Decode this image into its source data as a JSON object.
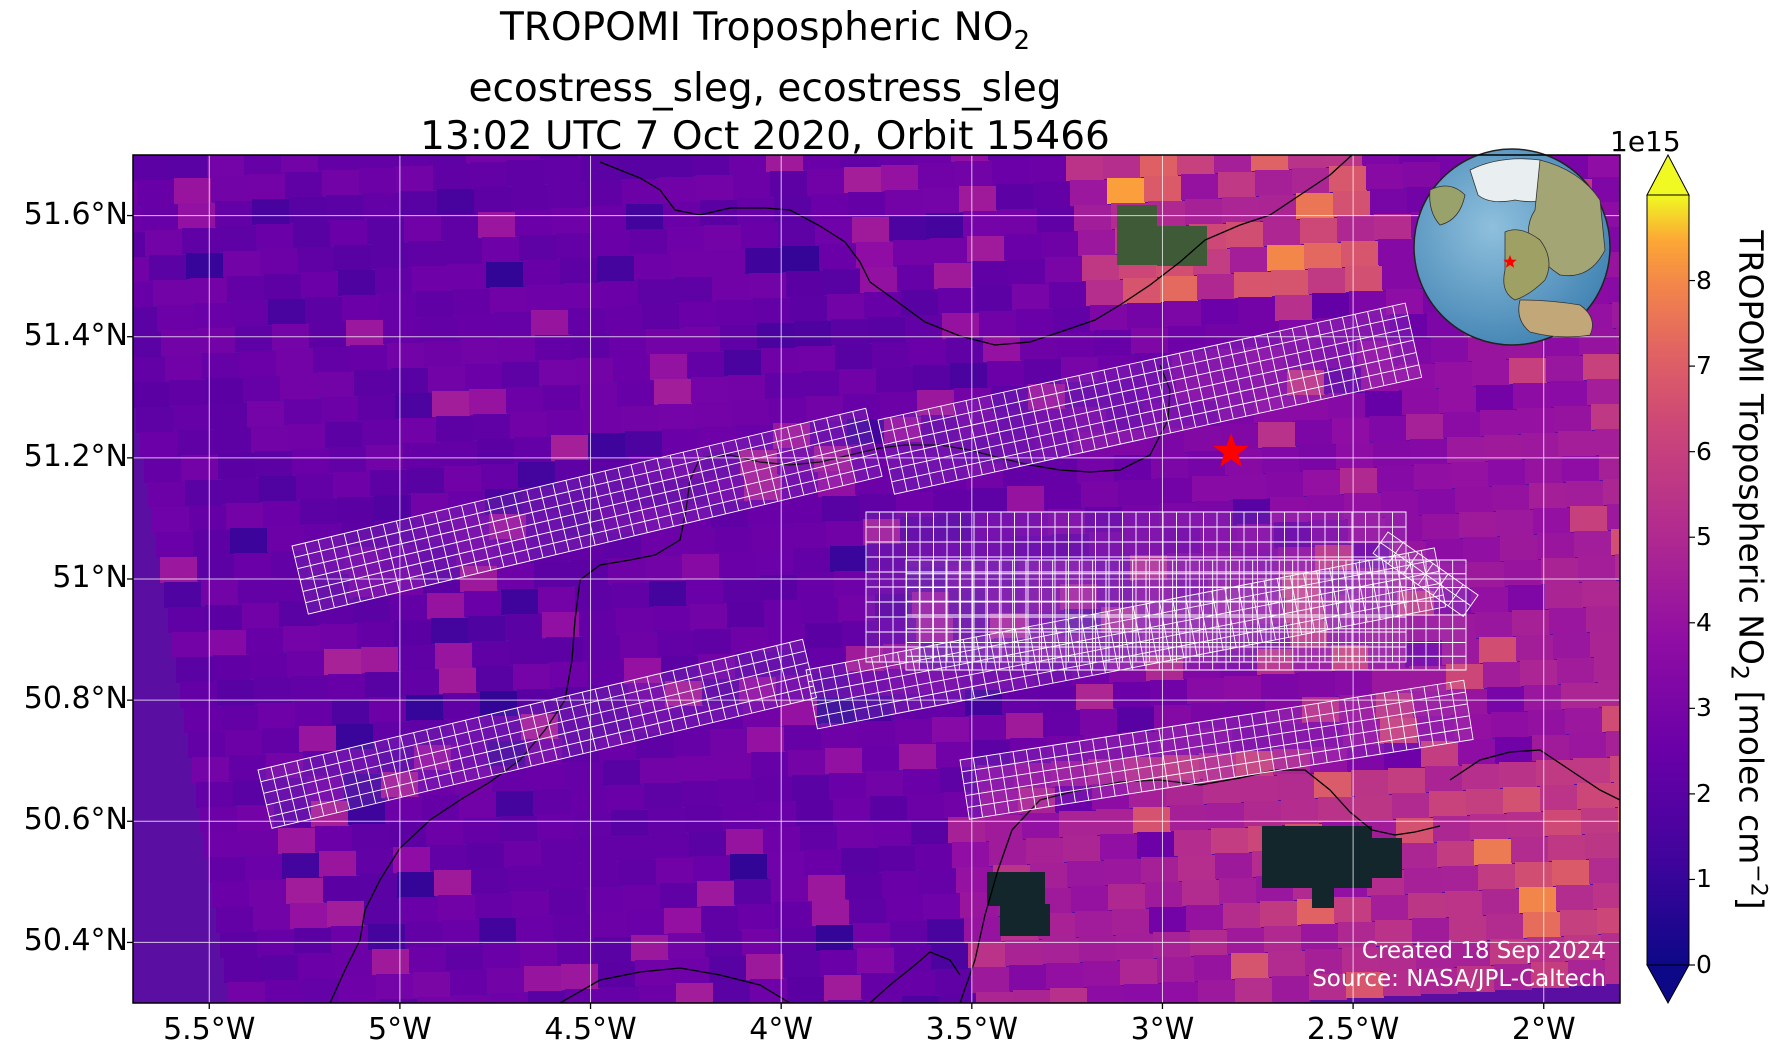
{
  "title": {
    "line1_prefix": "TROPOMI Tropospheric NO",
    "line1_sub": "2",
    "line2": "ecostress_sleg, ecostress_sleg",
    "line3": "13:02 UTC 7 Oct 2020, Orbit 15466"
  },
  "map": {
    "lon_range": [
      -5.7,
      -1.8
    ],
    "lat_range": [
      50.3,
      51.7
    ],
    "x_ticks": [
      {
        "value": -5.5,
        "label": "5.5°W"
      },
      {
        "value": -5.0,
        "label": "5°W"
      },
      {
        "value": -4.5,
        "label": "4.5°W"
      },
      {
        "value": -4.0,
        "label": "4°W"
      },
      {
        "value": -3.5,
        "label": "3.5°W"
      },
      {
        "value": -3.0,
        "label": "3°W"
      },
      {
        "value": -2.5,
        "label": "2.5°W"
      },
      {
        "value": -2.0,
        "label": "2°W"
      }
    ],
    "y_ticks": [
      {
        "value": 51.6,
        "label": "51.6°N"
      },
      {
        "value": 51.4,
        "label": "51.4°N"
      },
      {
        "value": 51.2,
        "label": "51.2°N"
      },
      {
        "value": 51.0,
        "label": "51°N"
      },
      {
        "value": 50.8,
        "label": "50.8°N"
      },
      {
        "value": 50.6,
        "label": "50.6°N"
      },
      {
        "value": 50.4,
        "label": "50.4°N"
      }
    ],
    "gridlines": true,
    "target_marker": {
      "lon": -2.82,
      "lat": 51.21,
      "color": "#ff0000",
      "symbol": "star"
    },
    "overlay_outline_color": "#ffffff",
    "inset_globe": {
      "position": "top-right",
      "marker_color": "#ff0000"
    }
  },
  "colorbar": {
    "label_prefix": "TROPOMI Tropospheric NO",
    "label_sub": "2",
    "label_suffix": " [molec cm",
    "label_sup": "−2",
    "label_end": "]",
    "exponent_label": "1e15",
    "ticks": [
      {
        "value": 0,
        "label": "0"
      },
      {
        "value": 1,
        "label": "1"
      },
      {
        "value": 2,
        "label": "2"
      },
      {
        "value": 3,
        "label": "3"
      },
      {
        "value": 4,
        "label": "4"
      },
      {
        "value": 5,
        "label": "5"
      },
      {
        "value": 6,
        "label": "6"
      },
      {
        "value": 7,
        "label": "7"
      },
      {
        "value": 8,
        "label": "8"
      }
    ],
    "range": [
      0,
      9
    ],
    "colormap": "plasma",
    "extend": "both"
  },
  "credits": {
    "created": "Created 18 Sep 2024",
    "source": "Source: NASA/JPL-Caltech"
  }
}
